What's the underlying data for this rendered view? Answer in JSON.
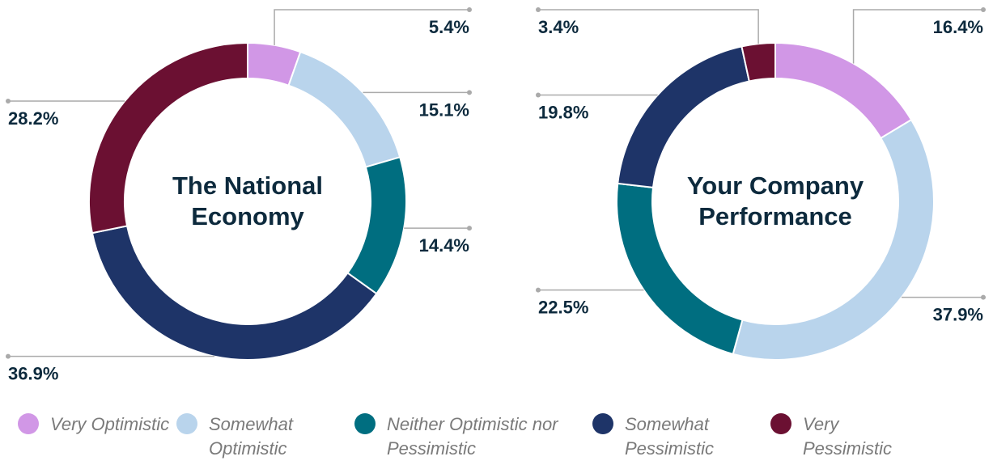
{
  "chart_data": [
    {
      "type": "pie",
      "donut": true,
      "title": "The National Economy",
      "categories": [
        "Very Optimistic",
        "Somewhat Optimistic",
        "Neither Optimistic nor Pessimistic",
        "Somewhat Pessimistic",
        "Very Pessimistic"
      ],
      "values": [
        5.4,
        15.1,
        14.4,
        36.9,
        28.2
      ],
      "value_labels": [
        "5.4%",
        "15.1%",
        "14.4%",
        "36.9%",
        "28.2%"
      ],
      "colors": [
        "#d197e6",
        "#b9d4ec",
        "#006e80",
        "#1e3468",
        "#6b1032"
      ]
    },
    {
      "type": "pie",
      "donut": true,
      "title": "Your Company Performance",
      "categories": [
        "Very Optimistic",
        "Somewhat Optimistic",
        "Neither Optimistic nor Pessimistic",
        "Somewhat Pessimistic",
        "Very Pessimistic"
      ],
      "values": [
        16.4,
        37.9,
        22.5,
        19.8,
        3.4
      ],
      "value_labels": [
        "16.4%",
        "37.9%",
        "22.5%",
        "19.8%",
        "3.4%"
      ],
      "colors": [
        "#d197e6",
        "#b9d4ec",
        "#006e80",
        "#1e3468",
        "#6b1032"
      ]
    }
  ]
}
